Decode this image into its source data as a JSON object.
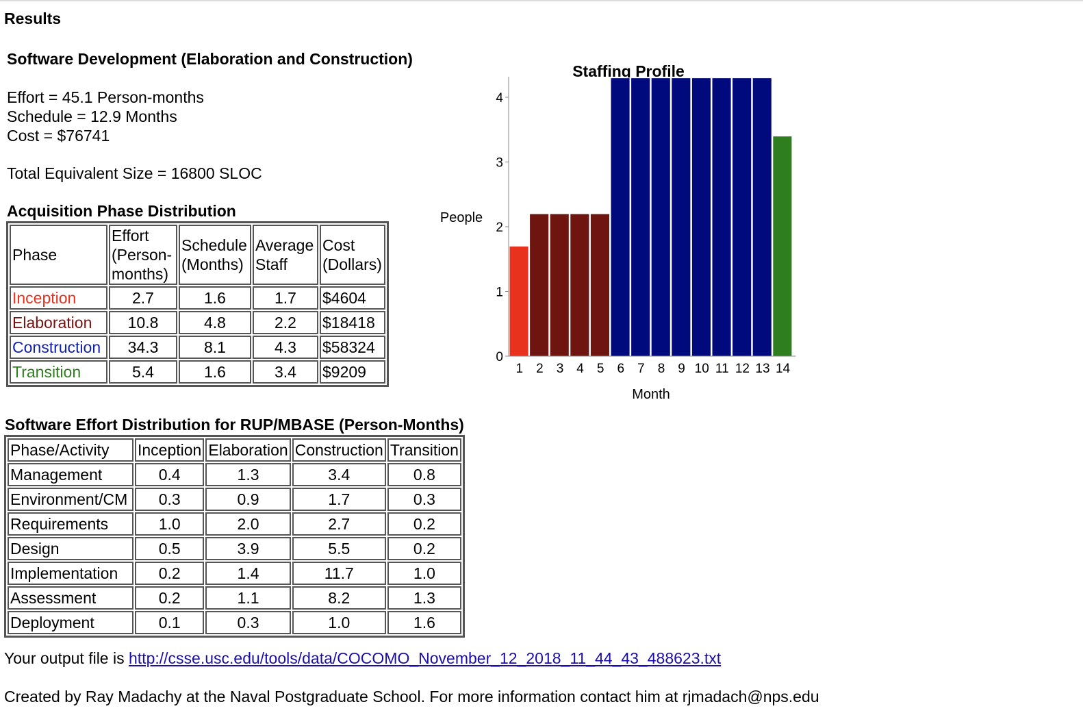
{
  "page": {
    "title": "Results",
    "dev_heading": "Software Development (Elaboration and Construction)",
    "effort_line": "Effort = 45.1 Person-months",
    "schedule_line": "Schedule = 12.9 Months",
    "cost_line": "Cost = $76741",
    "size_line": "Total Equivalent Size = 16800 SLOC",
    "acq_heading": "Acquisition Phase Distribution",
    "effort_dist_heading": "Software Effort Distribution for RUP/MBASE (Person-Months)",
    "output_prefix": "Your output file is ",
    "output_link": "http://csse.usc.edu/tools/data/COCOMO_November_12_2018_11_44_43_488623.txt",
    "footer": "Created by Ray Madachy at the Naval Postgraduate School. For more information contact him at rjmadach@nps.edu"
  },
  "acq_table": {
    "headers": [
      "Phase",
      "Effort (Person-months)",
      "Schedule (Months)",
      "Average Staff",
      "Cost (Dollars)"
    ],
    "header_lines": {
      "effort": [
        "Effort",
        "(Person-",
        "months)"
      ],
      "schedule": [
        "Schedule",
        "(Months)"
      ],
      "staff": [
        "Average",
        "Staff"
      ],
      "cost": [
        "Cost",
        "(Dollars)"
      ]
    },
    "rows": [
      {
        "phase": "Inception",
        "effort": "2.7",
        "schedule": "1.6",
        "staff": "1.7",
        "cost": "$4604",
        "color": "#e8321e"
      },
      {
        "phase": "Elaboration",
        "effort": "10.8",
        "schedule": "4.8",
        "staff": "2.2",
        "cost": "$18418",
        "color": "#7a1010"
      },
      {
        "phase": "Construction",
        "effort": "34.3",
        "schedule": "8.1",
        "staff": "4.3",
        "cost": "$58324",
        "color": "#1020b0"
      },
      {
        "phase": "Transition",
        "effort": "5.4",
        "schedule": "1.6",
        "staff": "3.4",
        "cost": "$9209",
        "color": "#2e7d1e"
      }
    ]
  },
  "effort_table": {
    "headers": [
      "Phase/Activity",
      "Inception",
      "Elaboration",
      "Construction",
      "Transition"
    ],
    "rows": [
      [
        "Management",
        "0.4",
        "1.3",
        "3.4",
        "0.8"
      ],
      [
        "Environment/CM",
        "0.3",
        "0.9",
        "1.7",
        "0.3"
      ],
      [
        "Requirements",
        "1.0",
        "2.0",
        "2.7",
        "0.2"
      ],
      [
        "Design",
        "0.5",
        "3.9",
        "5.5",
        "0.2"
      ],
      [
        "Implementation",
        "0.2",
        "1.4",
        "11.7",
        "1.0"
      ],
      [
        "Assessment",
        "0.2",
        "1.1",
        "8.2",
        "1.3"
      ],
      [
        "Deployment",
        "0.1",
        "0.3",
        "1.0",
        "1.6"
      ]
    ]
  },
  "chart_data": {
    "type": "bar",
    "title": "Staffing Profile",
    "xlabel": "Month",
    "ylabel": "People",
    "categories": [
      "1",
      "2",
      "3",
      "4",
      "5",
      "6",
      "7",
      "8",
      "9",
      "10",
      "11",
      "12",
      "13",
      "14"
    ],
    "values": [
      1.7,
      2.2,
      2.2,
      2.2,
      2.2,
      4.3,
      4.3,
      4.3,
      4.3,
      4.3,
      4.3,
      4.3,
      4.3,
      3.4
    ],
    "bar_colors": [
      "#e8321e",
      "#6e1510",
      "#6e1510",
      "#6e1510",
      "#6e1510",
      "#000a7d",
      "#000a7d",
      "#000a7d",
      "#000a7d",
      "#000a7d",
      "#000a7d",
      "#000a7d",
      "#000a7d",
      "#2e7d1e"
    ],
    "ylim": [
      0,
      4.3
    ],
    "yticks": [
      "0",
      "1",
      "2",
      "3",
      "4"
    ],
    "grid": false,
    "legend": "none"
  }
}
